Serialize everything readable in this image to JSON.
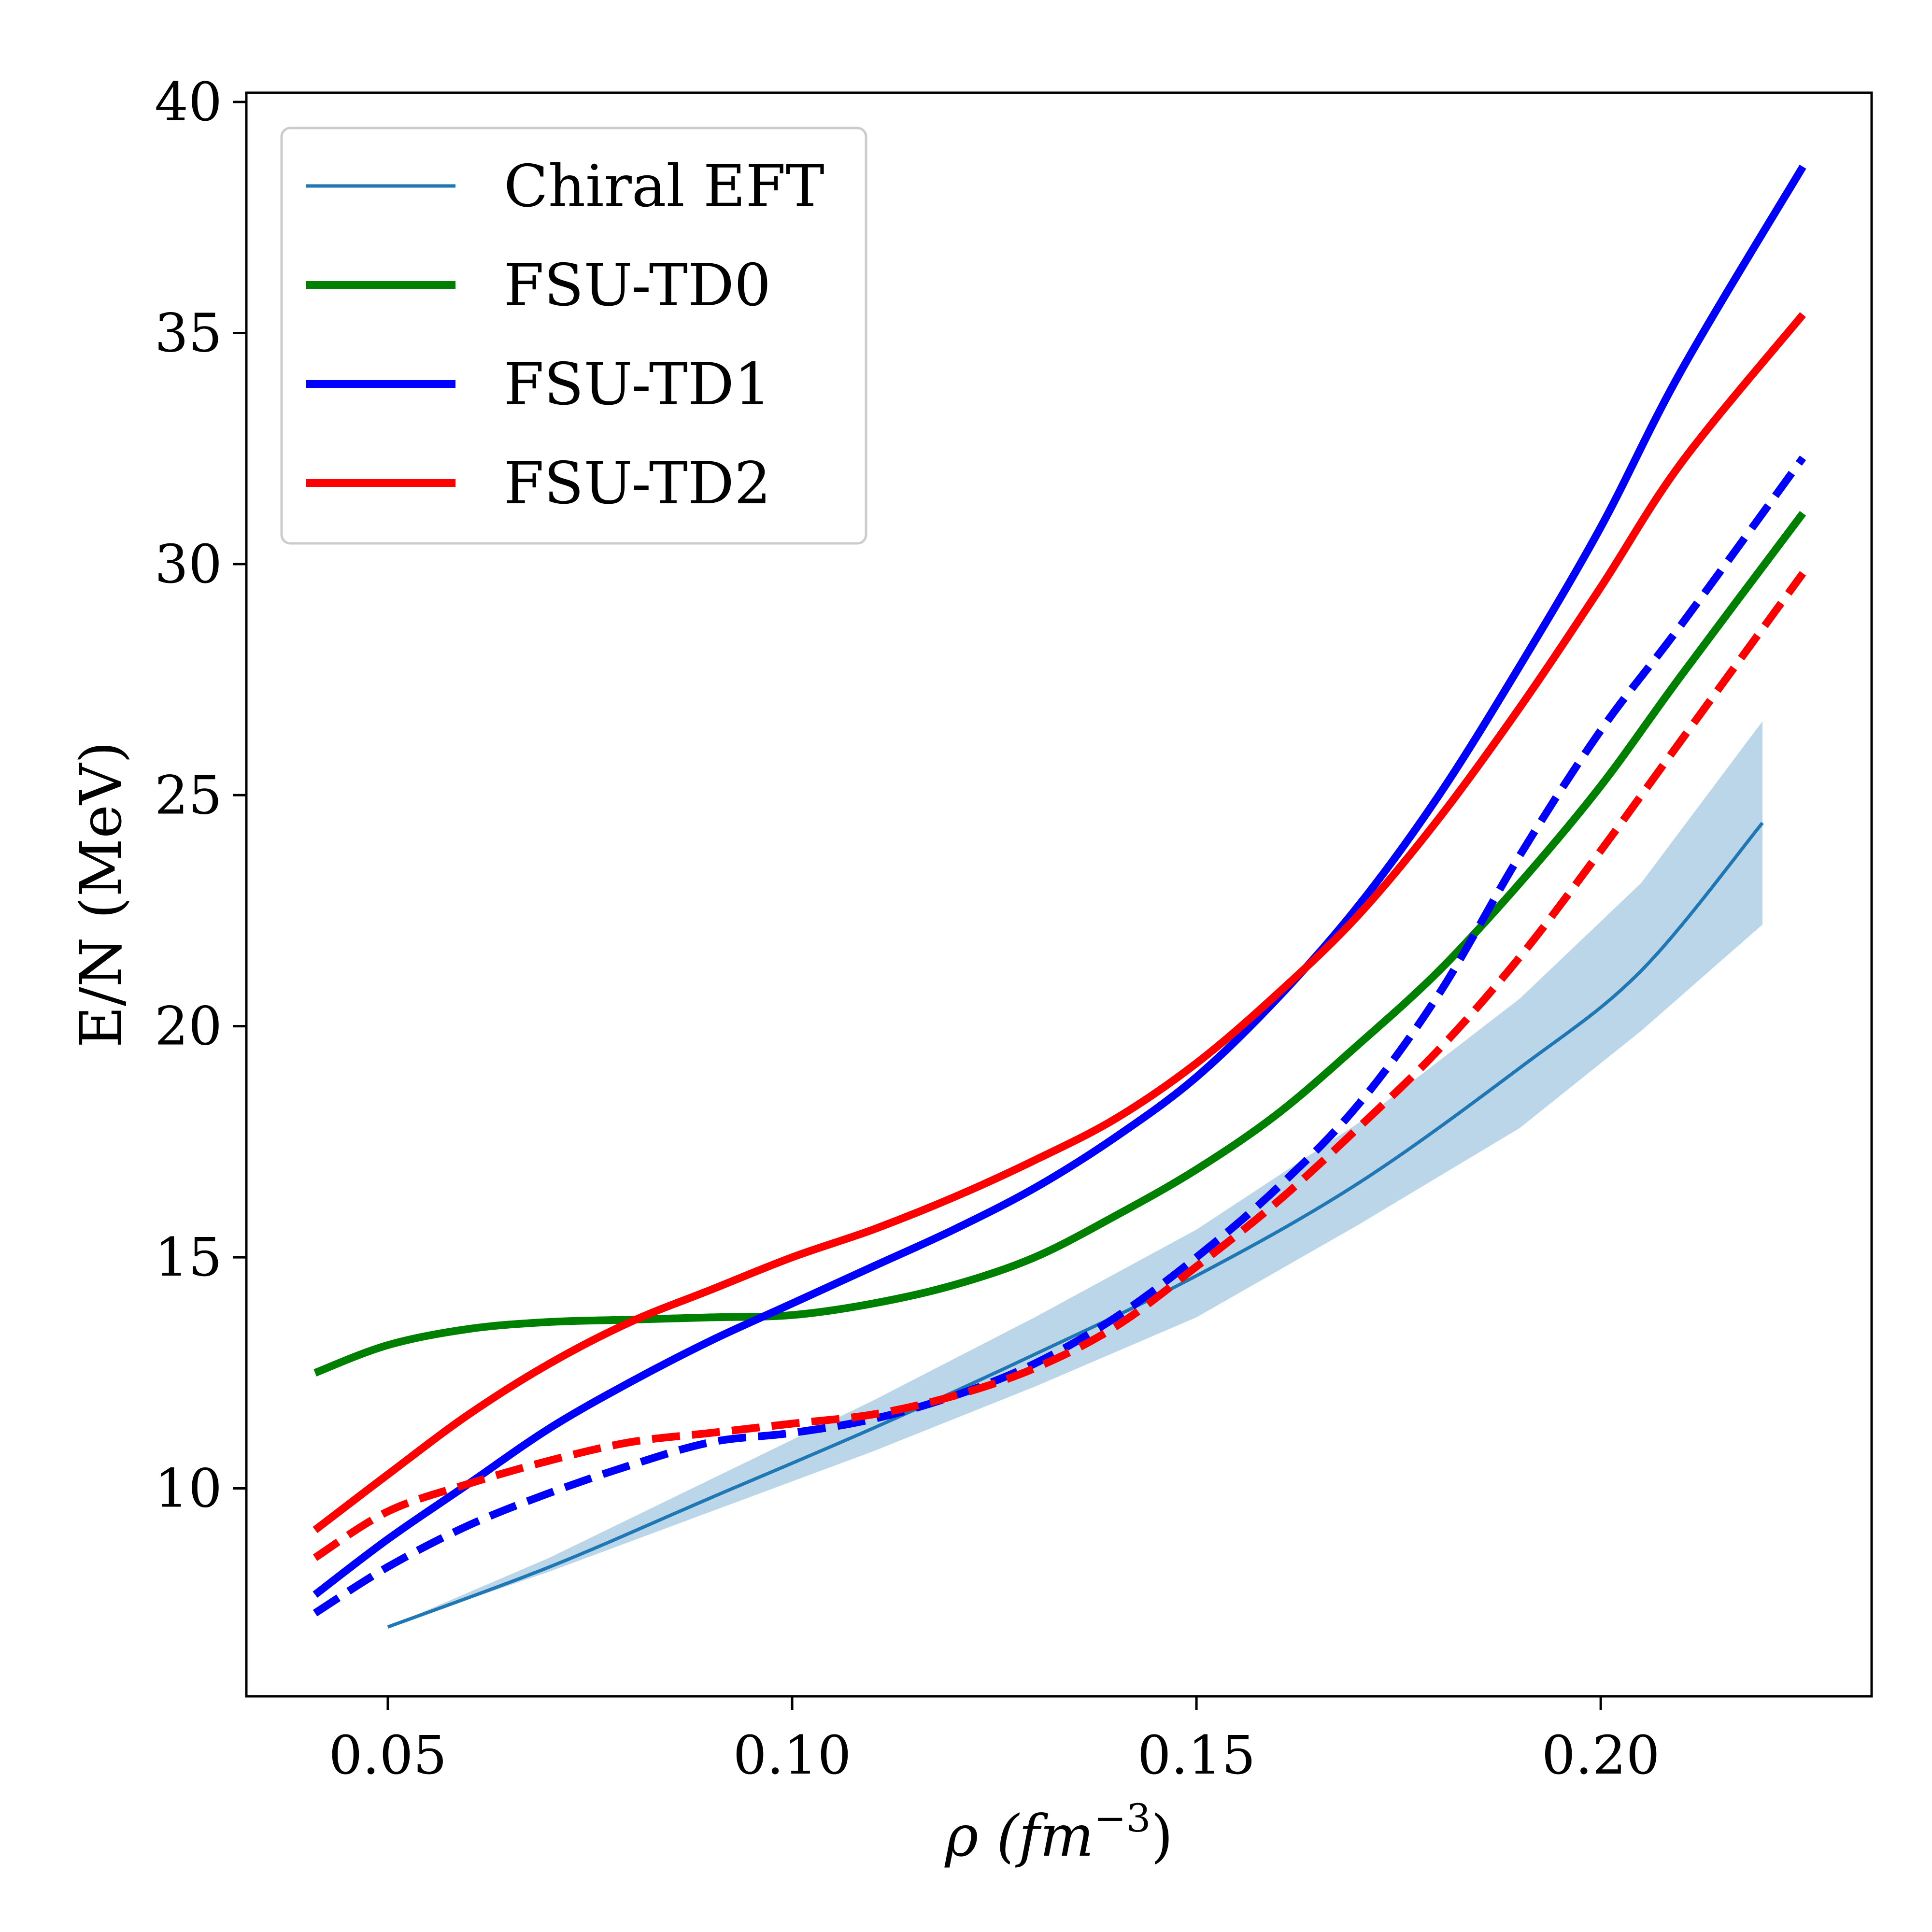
{
  "chart_data": {
    "type": "line",
    "xlabel": "ρ (fm",
    "xlabel_sup": "−3",
    "xlabel_close": ")",
    "ylabel": "E/N (MeV)",
    "xlim": [
      0.0325,
      0.2335
    ],
    "ylim": [
      5.5,
      40.2
    ],
    "xticks": [
      0.05,
      0.1,
      0.15,
      0.2
    ],
    "xtick_labels": [
      "0.05",
      "0.10",
      "0.15",
      "0.20"
    ],
    "yticks": [
      10,
      15,
      20,
      25,
      30,
      35,
      40
    ],
    "ytick_labels": [
      "10",
      "15",
      "20",
      "25",
      "30",
      "35",
      "40"
    ],
    "grid": false,
    "legend_position": "top-left",
    "band": {
      "color": "#1f77b4",
      "opacity": 0.3,
      "x": [
        0.05,
        0.07,
        0.09,
        0.11,
        0.13,
        0.15,
        0.17,
        0.19,
        0.205,
        0.22
      ],
      "lower": [
        7.0,
        8.2,
        9.5,
        10.8,
        12.2,
        13.7,
        15.7,
        17.8,
        19.9,
        22.2
      ],
      "upper": [
        7.0,
        8.5,
        10.2,
        11.9,
        13.7,
        15.6,
        17.9,
        20.6,
        23.1,
        26.6
      ]
    },
    "series": [
      {
        "name": "Chiral EFT",
        "color": "#1f77b4",
        "style": "solid",
        "width": 7,
        "x": [
          0.05,
          0.07,
          0.09,
          0.11,
          0.13,
          0.15,
          0.17,
          0.19,
          0.205,
          0.22
        ],
        "y": [
          7.0,
          8.3,
          9.8,
          11.3,
          12.9,
          14.6,
          16.6,
          19.1,
          21.2,
          24.4
        ]
      },
      {
        "name": "FSU-TD0",
        "color": "#008000",
        "style": "solid",
        "width": 16,
        "x": [
          0.041,
          0.05,
          0.06,
          0.07,
          0.08,
          0.09,
          0.1,
          0.11,
          0.12,
          0.13,
          0.14,
          0.15,
          0.16,
          0.17,
          0.18,
          0.19,
          0.2,
          0.21,
          0.225
        ],
        "y": [
          12.5,
          13.1,
          13.45,
          13.6,
          13.65,
          13.7,
          13.75,
          14.0,
          14.4,
          15.0,
          15.9,
          16.9,
          18.1,
          19.6,
          21.2,
          23.1,
          25.2,
          27.6,
          31.1
        ]
      },
      {
        "name": "FSU-TD1",
        "color": "#0000ff",
        "style": "solid",
        "width": 16,
        "x": [
          0.041,
          0.05,
          0.06,
          0.07,
          0.08,
          0.09,
          0.1,
          0.11,
          0.12,
          0.13,
          0.14,
          0.15,
          0.16,
          0.17,
          0.18,
          0.19,
          0.2,
          0.21,
          0.225
        ],
        "y": [
          7.7,
          8.9,
          10.1,
          11.3,
          12.3,
          13.2,
          14.0,
          14.8,
          15.6,
          16.5,
          17.6,
          18.9,
          20.6,
          22.6,
          25.0,
          27.8,
          30.8,
          34.2,
          38.6
        ]
      },
      {
        "name": "FSU-TD2",
        "color": "#ff0000",
        "style": "solid",
        "width": 16,
        "x": [
          0.041,
          0.05,
          0.06,
          0.07,
          0.08,
          0.09,
          0.1,
          0.11,
          0.12,
          0.13,
          0.14,
          0.15,
          0.16,
          0.17,
          0.18,
          0.19,
          0.2,
          0.21,
          0.225
        ],
        "y": [
          9.1,
          10.3,
          11.6,
          12.7,
          13.6,
          14.3,
          15.0,
          15.6,
          16.3,
          17.1,
          18.0,
          19.2,
          20.7,
          22.4,
          24.5,
          26.9,
          29.5,
          32.2,
          35.4
        ]
      },
      {
        "name": "",
        "color": "#0000ff",
        "style": "dashed",
        "width": 16,
        "x": [
          0.041,
          0.05,
          0.06,
          0.07,
          0.08,
          0.09,
          0.1,
          0.11,
          0.12,
          0.13,
          0.14,
          0.15,
          0.16,
          0.17,
          0.18,
          0.19,
          0.2,
          0.21,
          0.225
        ],
        "y": [
          7.3,
          8.3,
          9.2,
          9.9,
          10.5,
          11.0,
          11.2,
          11.5,
          12.0,
          12.7,
          13.7,
          15.0,
          16.5,
          18.3,
          20.7,
          23.7,
          26.4,
          28.7,
          32.3
        ]
      },
      {
        "name": "",
        "color": "#ff0000",
        "style": "dashed",
        "width": 16,
        "x": [
          0.041,
          0.05,
          0.06,
          0.07,
          0.08,
          0.09,
          0.1,
          0.11,
          0.12,
          0.13,
          0.14,
          0.15,
          0.16,
          0.17,
          0.18,
          0.19,
          0.2,
          0.21,
          0.225
        ],
        "y": [
          8.5,
          9.5,
          10.1,
          10.6,
          11.0,
          11.2,
          11.4,
          11.6,
          12.0,
          12.6,
          13.5,
          14.8,
          16.2,
          17.8,
          19.5,
          21.5,
          23.8,
          26.2,
          29.8
        ]
      }
    ],
    "legend": [
      {
        "label": "Chiral EFT",
        "color": "#1f77b4",
        "width": 7
      },
      {
        "label": "FSU-TD0",
        "color": "#008000",
        "width": 16
      },
      {
        "label": "FSU-TD1",
        "color": "#0000ff",
        "width": 16
      },
      {
        "label": "FSU-TD2",
        "color": "#ff0000",
        "width": 16
      }
    ]
  }
}
